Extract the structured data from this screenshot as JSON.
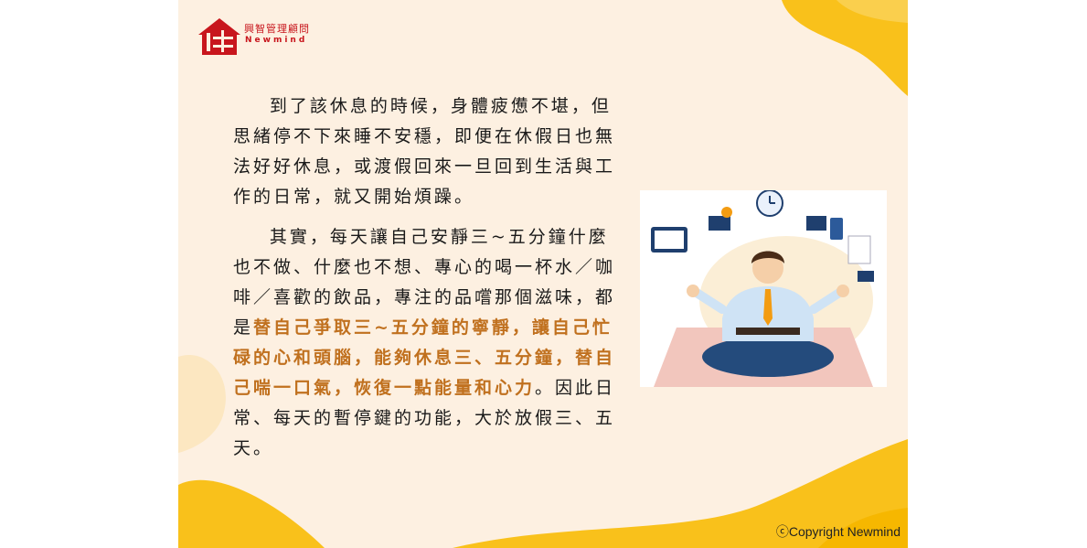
{
  "brand": {
    "name_cn": "興智管理顧問",
    "name_en": "Newmind"
  },
  "article": {
    "para1": "到了該休息的時候，身體疲憊不堪，但思緒停不下來睡不安穩，即便在休假日也無法好好休息，或渡假回來一旦回到生活與工作的日常，就又開始煩躁。",
    "para2_pre": "其實，每天讓自己安靜三~五分鐘什麼也不做、什麼也不想、專心的喝一杯水／咖啡／喜歡的飲品，專注的品嚐那個滋味，都是",
    "para2_highlight": "替自己爭取三~五分鐘的寧靜，讓自己忙碌的心和頭腦，能夠休息三、五分鐘，替自己喘一口氣，恢復一點能量和心力",
    "para2_post": "。因此日常、每天的暫停鍵的功能，大於放假三、五天。"
  },
  "illustration": {
    "icon": "meditating-man-icon"
  },
  "footer": {
    "copyright": "ⓒCopyright Newmind"
  },
  "colors": {
    "background": "#fdf0e1",
    "accent_yellow": "#f9c11b",
    "highlight_text": "#c0701e",
    "brand_red": "#c8161d"
  }
}
